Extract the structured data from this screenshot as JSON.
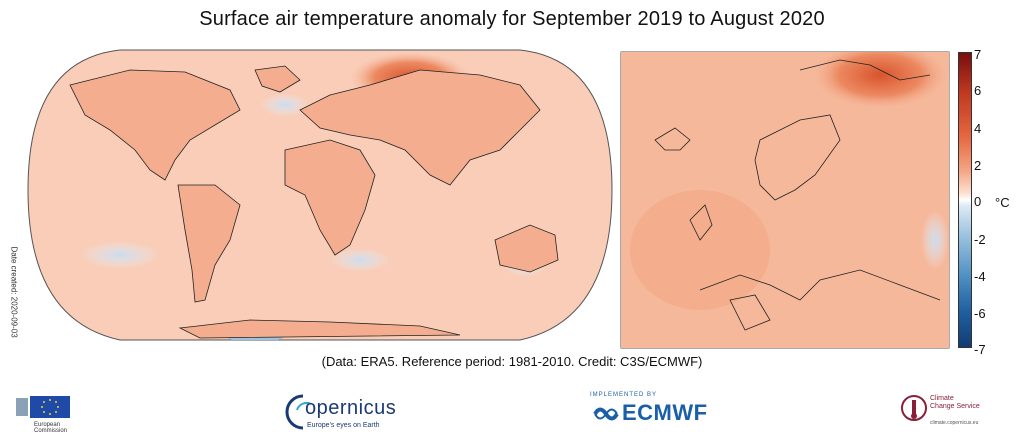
{
  "title": "Surface air temperature anomaly for September 2019 to August 2020",
  "credit": "(Data: ERA5.  Reference period: 1981-2010.  Credit: C3S/ECMWF)",
  "date_created": "Date created: 2020-09-03",
  "colorbar": {
    "unit": "°C",
    "ticks": [
      "7",
      "6",
      "4",
      "2",
      "0",
      "-2",
      "-4",
      "-6",
      "-7"
    ],
    "colors": {
      "max": "#7a0e0e",
      "high": "#e4653f",
      "zero": "#ffffff",
      "low": "#4f8fc2",
      "min": "#123d75"
    }
  },
  "logos": {
    "eu": {
      "line1": "European",
      "line2": "Commission"
    },
    "copernicus": {
      "word": "opernicus",
      "initial": "C",
      "sub": "Europe's eyes on Earth"
    },
    "ecmwf": {
      "pre": "IMPLEMENTED BY",
      "word": "ECMWF"
    },
    "c3s": {
      "line1": "Climate",
      "line2": "Change Service",
      "sub": "climate.copernicus.eu"
    }
  },
  "map": {
    "land_color": "#f6b89b",
    "ocean_color": "#f9cdb8",
    "warm_hotspot": "#e0653c",
    "cool_patch": "#dbe6f2",
    "coast_color": "#222222"
  }
}
